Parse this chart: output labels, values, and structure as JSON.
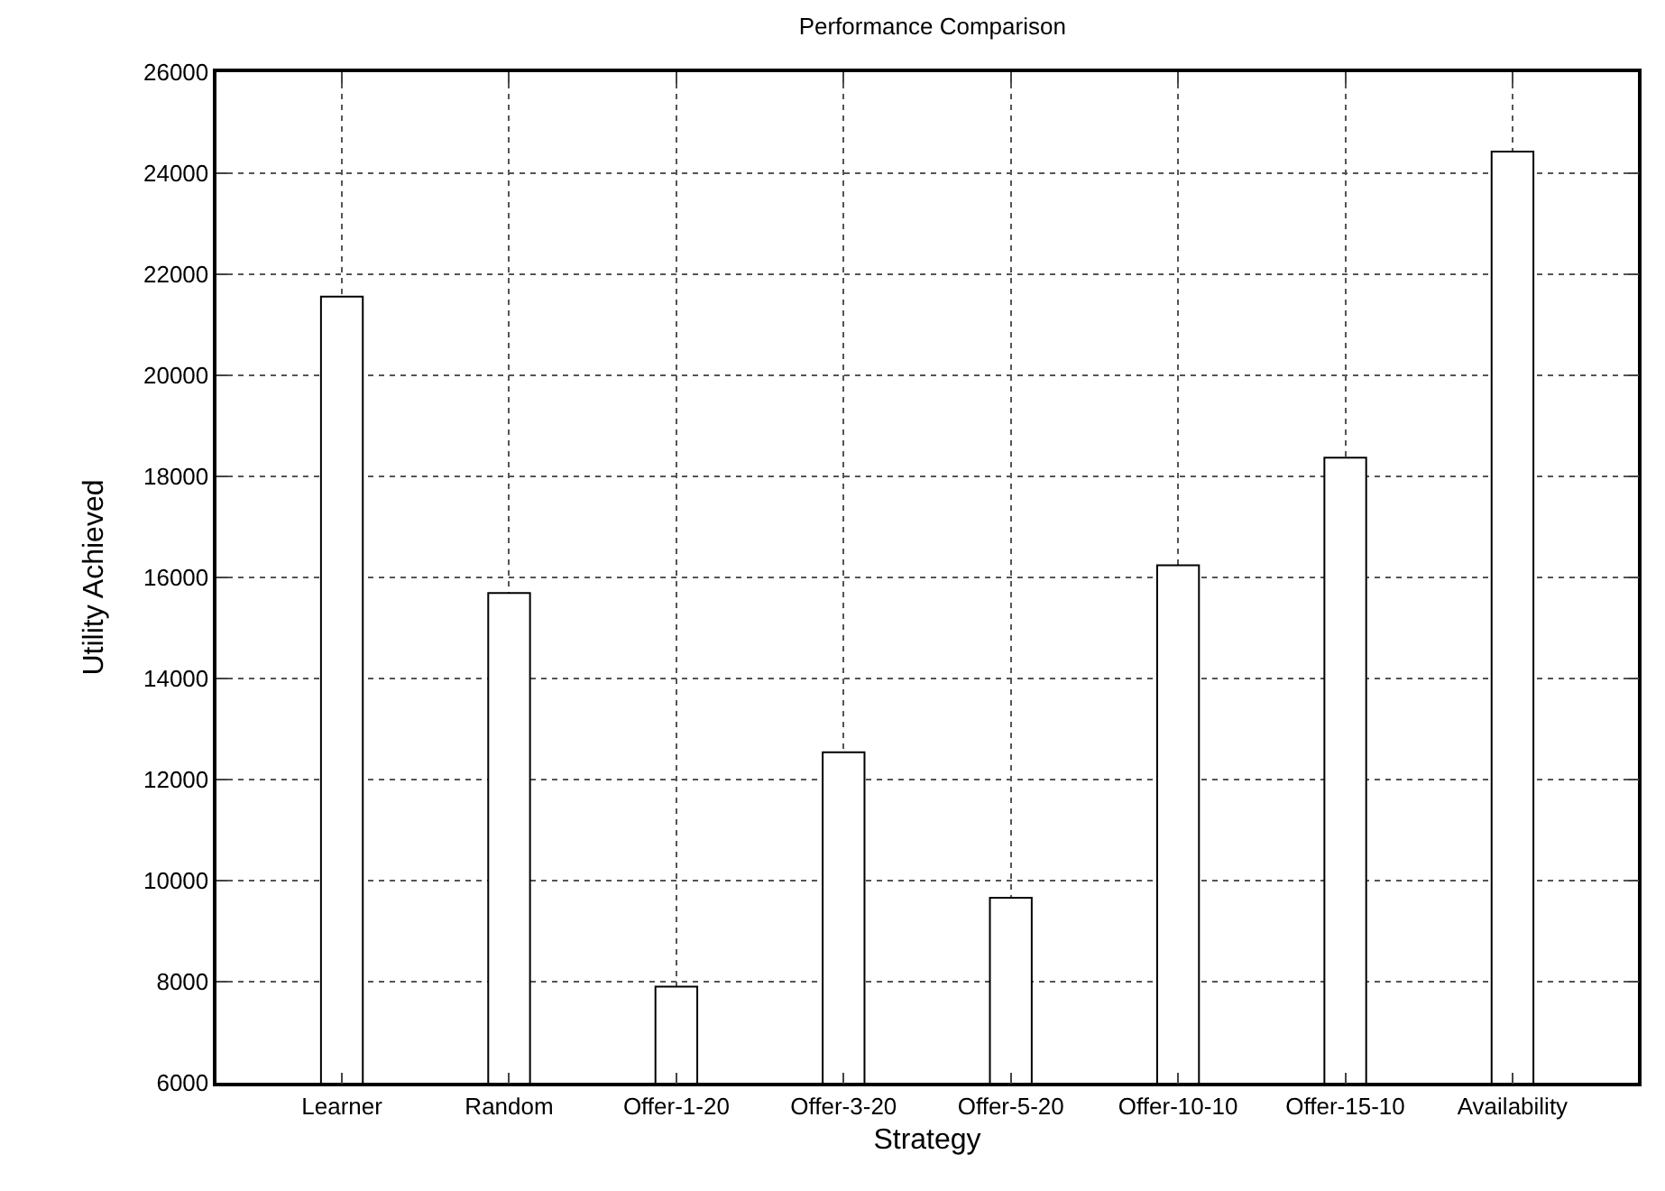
{
  "chart_data": {
    "type": "bar",
    "title": "Performance Comparison",
    "xlabel": "Strategy",
    "ylabel": "Utility Achieved",
    "categories": [
      "Learner",
      "Random",
      "Offer-1-20",
      "Offer-3-20",
      "Offer-5-20",
      "Offer-10-10",
      "Offer-15-10",
      "Availability"
    ],
    "values": [
      21560,
      15690,
      7900,
      12540,
      9660,
      16240,
      18370,
      24430
    ],
    "color": "#ffffff",
    "ylim": [
      6000,
      26000
    ],
    "yticks": [
      6000,
      8000,
      10000,
      12000,
      14000,
      16000,
      18000,
      20000,
      22000,
      24000,
      26000
    ],
    "grid": true
  }
}
